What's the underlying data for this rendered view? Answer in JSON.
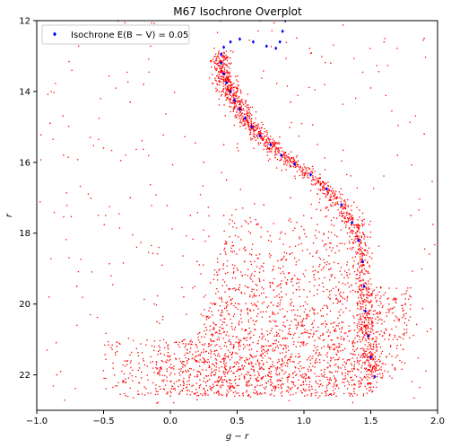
{
  "chart_data": {
    "type": "scatter",
    "title": "M67 Isochrone Overplot",
    "xlabel": "g − r",
    "ylabel": "r",
    "xlim": [
      -1.0,
      2.0
    ],
    "ylim": [
      23,
      12
    ],
    "y_inverted": true,
    "grid": false,
    "legend_position": "top-left",
    "xticks": [
      "−1.0",
      "−0.5",
      "0.0",
      "0.5",
      "1.0",
      "1.5",
      "2.0"
    ],
    "xtick_values": [
      -1.0,
      -0.5,
      0.0,
      0.5,
      1.0,
      1.5,
      2.0
    ],
    "yticks": [
      "12",
      "14",
      "16",
      "18",
      "20",
      "22"
    ],
    "ytick_values": [
      12,
      14,
      16,
      18,
      20,
      22
    ],
    "series": [
      {
        "name": "",
        "color": "#ff0000",
        "marker": "dot",
        "points": [
          [
            0.36,
            13.2
          ],
          [
            0.38,
            13.45
          ],
          [
            0.4,
            13.7
          ],
          [
            0.42,
            13.95
          ],
          [
            0.45,
            14.2
          ],
          [
            0.48,
            14.45
          ],
          [
            0.52,
            14.7
          ],
          [
            0.55,
            14.95
          ],
          [
            0.6,
            15.2
          ],
          [
            0.66,
            15.45
          ],
          [
            0.74,
            15.7
          ],
          [
            0.82,
            15.95
          ],
          [
            0.9,
            16.1
          ],
          [
            1.0,
            16.3
          ],
          [
            1.08,
            16.5
          ],
          [
            1.16,
            16.75
          ],
          [
            1.24,
            17.0
          ],
          [
            1.3,
            17.3
          ],
          [
            1.36,
            17.7
          ],
          [
            1.4,
            18.1
          ],
          [
            1.42,
            18.6
          ],
          [
            1.42,
            19.1
          ],
          [
            1.42,
            19.6
          ],
          [
            1.44,
            20.0
          ],
          [
            1.46,
            20.4
          ],
          [
            1.5,
            20.8
          ],
          [
            0.4,
            15.5
          ],
          [
            0.42,
            16.5
          ],
          [
            0.4,
            17.5
          ],
          [
            0.42,
            18.3
          ],
          [
            0.5,
            19.0
          ],
          [
            0.6,
            18.0
          ],
          [
            0.7,
            17.2
          ],
          [
            0.9,
            17.0
          ],
          [
            1.0,
            17.9
          ],
          [
            1.1,
            18.5
          ],
          [
            1.2,
            19.0
          ],
          [
            0.8,
            19.5
          ],
          [
            0.6,
            20.2
          ],
          [
            0.4,
            20.8
          ],
          [
            0.3,
            21.0
          ],
          [
            0.5,
            21.4
          ],
          [
            0.7,
            21.2
          ],
          [
            0.9,
            21.5
          ],
          [
            1.1,
            21.3
          ],
          [
            1.3,
            21.0
          ],
          [
            1.5,
            21.2
          ],
          [
            1.6,
            20.8
          ],
          [
            1.7,
            21.0
          ],
          [
            0.2,
            21.6
          ],
          [
            0.4,
            21.9
          ],
          [
            0.6,
            22.1
          ],
          [
            0.8,
            22.0
          ],
          [
            1.0,
            21.8
          ],
          [
            1.2,
            21.6
          ],
          [
            0.1,
            22.3
          ],
          [
            0.3,
            22.4
          ],
          [
            0.5,
            22.3
          ],
          [
            0.0,
            22.6
          ],
          [
            -0.1,
            22.8
          ],
          [
            0.2,
            22.7
          ],
          [
            -0.2,
            21.6
          ],
          [
            -0.4,
            21.2
          ],
          [
            -0.1,
            20.5
          ],
          [
            0.1,
            19.8
          ],
          [
            0.2,
            18.8
          ],
          [
            0.3,
            19.4
          ],
          [
            -0.3,
            17.0
          ],
          [
            -0.6,
            15.3
          ],
          [
            -0.8,
            15.8
          ],
          [
            -0.9,
            14.9
          ],
          [
            -0.3,
            14.3
          ],
          [
            -0.2,
            13.8
          ],
          [
            -0.5,
            15.6
          ],
          [
            1.7,
            15.8
          ],
          [
            1.9,
            15.2
          ],
          [
            1.8,
            17.5
          ],
          [
            1.6,
            12.6
          ],
          [
            1.9,
            12.5
          ],
          [
            1.2,
            13.2
          ],
          [
            1.5,
            13.9
          ],
          [
            0.9,
            14.3
          ],
          [
            0.25,
            16.0
          ],
          [
            0.15,
            17.5
          ],
          [
            -0.7,
            19.5
          ],
          [
            -0.85,
            22.0
          ],
          [
            1.8,
            19.8
          ],
          [
            1.95,
            20.7
          ]
        ]
      },
      {
        "name": "Isochrone E(B − V) = 0.05",
        "color": "#0000ff",
        "marker": "diamond",
        "points": [
          [
            0.86,
            12.0
          ],
          [
            0.84,
            12.3
          ],
          [
            0.82,
            12.6
          ],
          [
            0.79,
            12.78
          ],
          [
            0.72,
            12.72
          ],
          [
            0.62,
            12.6
          ],
          [
            0.52,
            12.52
          ],
          [
            0.45,
            12.6
          ],
          [
            0.4,
            12.75
          ],
          [
            0.38,
            12.95
          ],
          [
            0.38,
            13.2
          ],
          [
            0.4,
            13.5
          ],
          [
            0.42,
            13.75
          ],
          [
            0.45,
            14.0
          ],
          [
            0.48,
            14.25
          ],
          [
            0.52,
            14.5
          ],
          [
            0.56,
            14.75
          ],
          [
            0.61,
            15.0
          ],
          [
            0.67,
            15.25
          ],
          [
            0.75,
            15.5
          ],
          [
            0.83,
            15.8
          ],
          [
            0.93,
            16.05
          ],
          [
            1.05,
            16.35
          ],
          [
            1.17,
            16.75
          ],
          [
            1.28,
            17.2
          ],
          [
            1.36,
            17.7
          ],
          [
            1.41,
            18.2
          ],
          [
            1.44,
            18.8
          ],
          [
            1.45,
            19.5
          ],
          [
            1.46,
            20.2
          ],
          [
            1.48,
            20.9
          ],
          [
            1.5,
            21.5
          ],
          [
            1.53,
            22.05
          ]
        ]
      }
    ],
    "background_fill": {
      "description_points_color": "#ff0000"
    }
  }
}
